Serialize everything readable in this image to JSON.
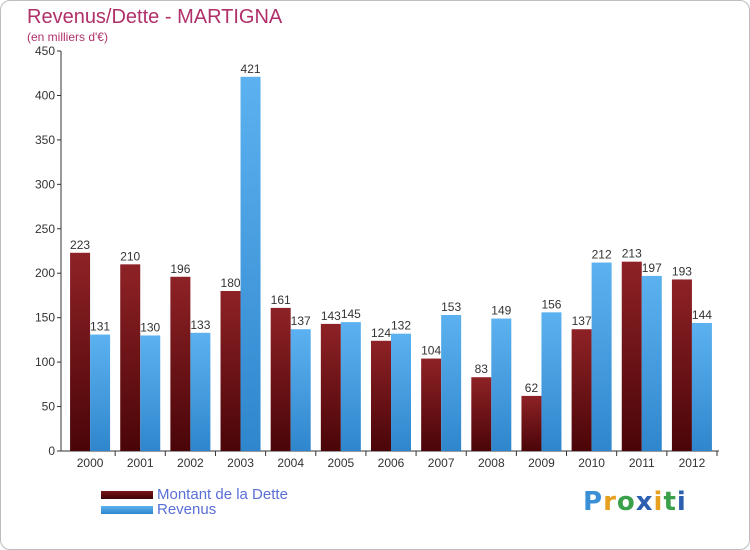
{
  "header": {
    "title": "Revenus/Dette - MARTIGNA",
    "subtitle": "(en milliers d'€)"
  },
  "chart_data": {
    "type": "bar",
    "categories": [
      "2000",
      "2001",
      "2002",
      "2003",
      "2004",
      "2005",
      "2006",
      "2007",
      "2008",
      "2009",
      "2010",
      "2011",
      "2012"
    ],
    "series": [
      {
        "name": "Montant de la Dette",
        "color": "#7a1a1e",
        "values": [
          223,
          210,
          196,
          180,
          161,
          143,
          124,
          104,
          83,
          62,
          137,
          213,
          193
        ]
      },
      {
        "name": "Revenus",
        "color": "#4aa3e8",
        "values": [
          131,
          130,
          133,
          421,
          137,
          145,
          132,
          153,
          149,
          156,
          212,
          197,
          144
        ]
      }
    ],
    "ylim": [
      0,
      450
    ],
    "yticks": [
      0,
      50,
      100,
      150,
      200,
      250,
      300,
      350,
      400,
      450
    ],
    "grid": false,
    "legend": "bottom-left"
  },
  "legend": {
    "items": [
      {
        "label": "Montant de la Dette",
        "color": "#5a0a0e"
      },
      {
        "label": "Revenus",
        "color": "#3d9be0"
      }
    ]
  },
  "logo": {
    "letters": [
      "P",
      "r",
      "o",
      "x",
      "i",
      "t",
      "i"
    ],
    "colors": [
      "#3a8fd6",
      "#e8a020",
      "#3aa04a",
      "#2d5fb0",
      "#e8a020",
      "#3aa04a",
      "#2d5fb0"
    ]
  }
}
